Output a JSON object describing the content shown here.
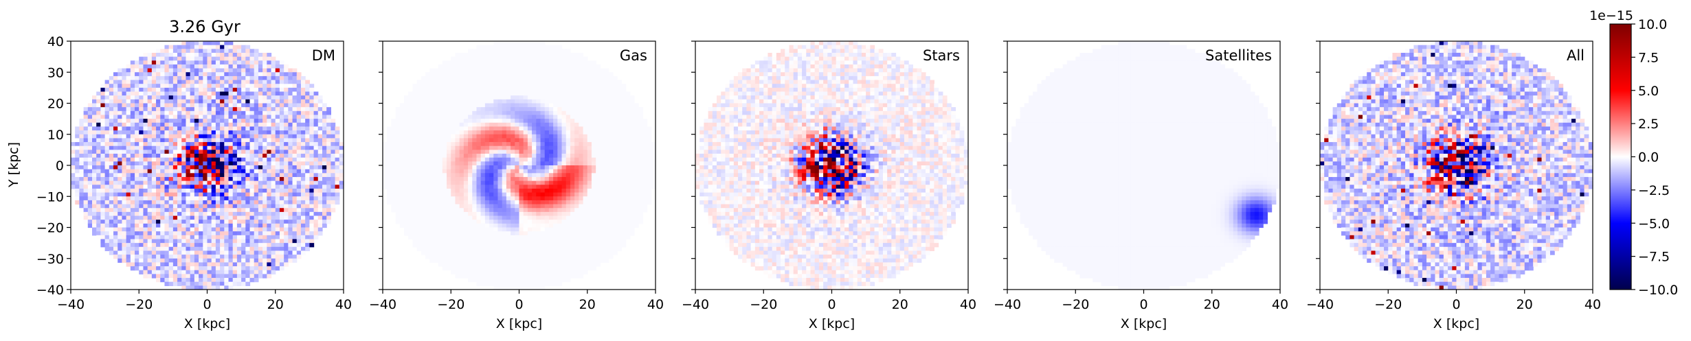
{
  "chart_data": {
    "type": "heatmap",
    "title": "3.26 Gyr",
    "ylabel": "Y [kpc]",
    "xlabel": "X [kpc]",
    "xlim": [
      -40,
      40
    ],
    "ylim": [
      -40,
      40
    ],
    "xticks": [
      -40,
      -20,
      0,
      20,
      40
    ],
    "yticks": [
      -40,
      -30,
      -20,
      -10,
      0,
      10,
      20,
      30,
      40
    ],
    "panels": [
      {
        "label": "DM",
        "mode": "noisy",
        "noise": 0.55,
        "core": 0.8,
        "disk": 0,
        "sat": 0
      },
      {
        "label": "Gas",
        "mode": "spiral",
        "noise": 0.08,
        "core": 0.2,
        "disk": 0.75,
        "sat": 0
      },
      {
        "label": "Stars",
        "mode": "core",
        "noise": 0.25,
        "core": 1.0,
        "disk": 0.15,
        "sat": 0
      },
      {
        "label": "Satellites",
        "mode": "sat",
        "noise": 0.0,
        "core": 0,
        "disk": 0,
        "sat": 0.45
      },
      {
        "label": "All",
        "mode": "noisy",
        "noise": 0.55,
        "core": 1.0,
        "disk": 0.2,
        "sat": 0
      }
    ],
    "colorbar": {
      "colormap": "seismic",
      "scale_label": "1e−15",
      "range": [
        -10.0,
        10.0
      ],
      "ticks": [
        10.0,
        7.5,
        5.0,
        2.5,
        0.0,
        -2.5,
        -5.0,
        -7.5,
        -10.0
      ],
      "tick_labels": [
        "10.0",
        "7.5",
        "5.0",
        "2.5",
        "0.0",
        "−2.5",
        "−5.0",
        "−7.5",
        "−10.0"
      ]
    }
  }
}
